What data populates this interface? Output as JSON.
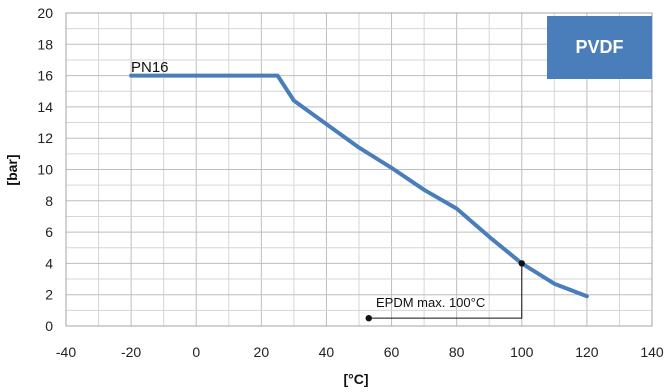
{
  "chart_data": {
    "type": "line",
    "title": "",
    "xlabel": "[°C]",
    "ylabel": "[bar]",
    "xlim": [
      -40,
      140
    ],
    "ylim": [
      0,
      20
    ],
    "xticks": [
      -40,
      -20,
      0,
      20,
      40,
      60,
      80,
      100,
      120,
      140
    ],
    "yticks": [
      0,
      2,
      4,
      6,
      8,
      10,
      12,
      14,
      16,
      18,
      20
    ],
    "grid": true,
    "series": [
      {
        "name": "PN16",
        "color": "#4a7ebb",
        "x": [
          -20,
          25,
          30,
          40,
          50,
          60,
          70,
          80,
          90,
          100,
          110,
          120
        ],
        "y": [
          16,
          16,
          14.4,
          12.9,
          11.4,
          10.1,
          8.7,
          7.5,
          5.7,
          4.0,
          2.7,
          1.9
        ]
      }
    ],
    "annotation": {
      "text": "EPDM max. 100°C",
      "marker_x": 100,
      "marker_y": 4.0,
      "anchor_x": 53,
      "anchor_y": 0.5
    },
    "badge": {
      "text": "PVDF",
      "color": "#4a7ebb"
    }
  }
}
